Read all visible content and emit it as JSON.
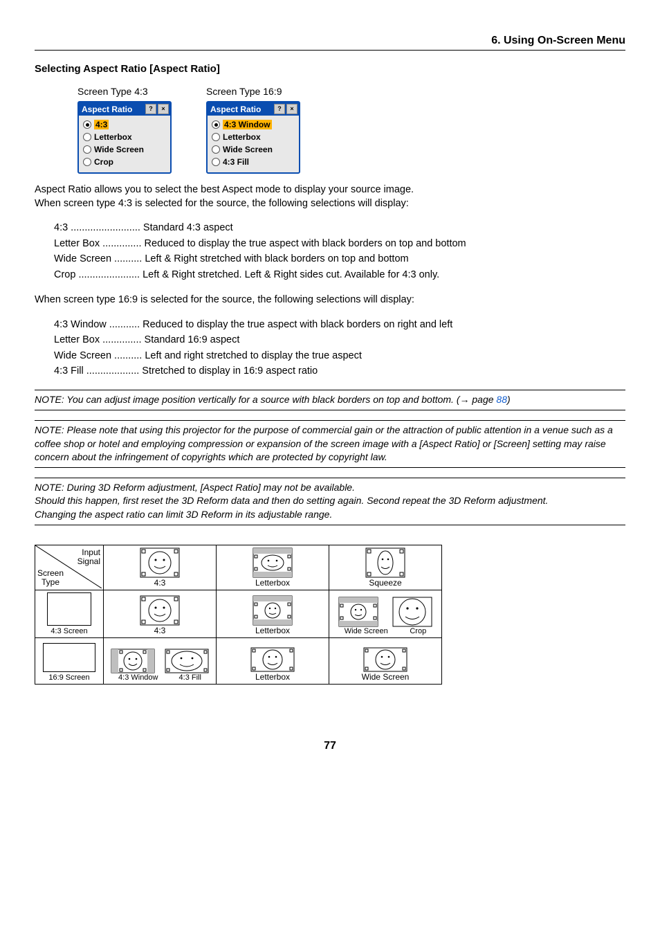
{
  "header": {
    "title": "6. Using On-Screen Menu"
  },
  "subheading": "Selecting Aspect Ratio [Aspect Ratio]",
  "dialogs": {
    "left": {
      "caption": "Screen Type 4:3",
      "title": "Aspect Ratio",
      "options": [
        "4:3",
        "Letterbox",
        "Wide Screen",
        "Crop"
      ],
      "selected_index": 0
    },
    "right": {
      "caption": "Screen Type 16:9",
      "title": "Aspect Ratio",
      "options": [
        "4:3 Window",
        "Letterbox",
        "Wide Screen",
        "4:3 Fill"
      ],
      "selected_index": 0
    }
  },
  "intro": {
    "p1": "Aspect Ratio allows you to select the best Aspect mode to display your source image.",
    "p2": "When screen type 4:3 is selected for the source, the following selections will display:"
  },
  "defs43": [
    {
      "term": "4:3",
      "dots": " .........................",
      "desc": "Standard 4:3 aspect"
    },
    {
      "term": "Letter Box",
      "dots": " ..............",
      "desc": "Reduced to display the true aspect with black borders on top and bottom"
    },
    {
      "term": "Wide Screen",
      "dots": " ..........",
      "desc": "Left & Right stretched with black borders on top and bottom"
    },
    {
      "term": "Crop",
      "dots": " ......................",
      "desc": "Left & Right stretched. Left & Right sides cut. Available for 4:3 only."
    }
  ],
  "mid": "When screen type 16:9 is selected for the source, the following selections will display:",
  "defs169": [
    {
      "term": "4:3 Window",
      "dots": " ...........",
      "desc": "Reduced to display the true aspect with black borders on right and left"
    },
    {
      "term": "Letter Box",
      "dots": " ..............",
      "desc": "Standard 16:9 aspect"
    },
    {
      "term": "Wide Screen",
      "dots": " ..........",
      "desc": "Left and right stretched to display the true aspect"
    },
    {
      "term": "4:3 Fill",
      "dots": " ...................",
      "desc": "Stretched to display in 16:9 aspect ratio"
    }
  ],
  "notes": {
    "n1_pre": "NOTE: You can adjust image position vertically for a source with black borders on top and bottom. (→ page ",
    "n1_link": "88",
    "n1_post": ")",
    "n2": "NOTE: Please note that using this projector for the purpose of commercial gain or the attraction of public attention in a venue such as a coffee shop or hotel and employing compression or expansion of the screen image with a [Aspect Ratio] or [Screen] setting may raise concern about the infringement of copyrights which are protected by copyright law.",
    "n3a": "NOTE: During 3D Reform adjustment, [Aspect Ratio] may not be available.",
    "n3b": "Should this happen, first reset the 3D Reform data and then do setting again. Second repeat the 3D Reform adjustment.",
    "n3c": "Changing the aspect ratio can limit 3D Reform in its adjustable range."
  },
  "diagram": {
    "corner_top": "Input\nSignal",
    "corner_bot": "Screen\nType",
    "sig_labels": [
      "4:3",
      "Letterbox",
      "Squeeze"
    ],
    "row43_label": "4:3 Screen",
    "row43_cells": [
      "4:3",
      "Letterbox",
      [
        "Wide Screen",
        "Crop"
      ]
    ],
    "row169_label": "16:9 Screen",
    "row169_cells": [
      [
        "4:3 Window",
        "4:3 Fill"
      ],
      "Letterbox",
      "Wide Screen"
    ]
  },
  "pagenum": "77",
  "colors": {
    "accent": "#0a4db0",
    "highlight": "#ffb300",
    "band": "#bfbfbf",
    "link": "#1560d0"
  }
}
